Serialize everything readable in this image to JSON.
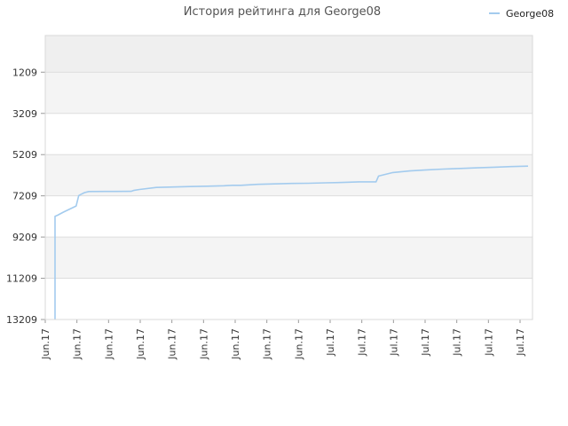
{
  "chart_data": {
    "type": "line",
    "title": "История рейтинга для George08",
    "xlabel": "",
    "ylabel": "",
    "y_inverted": true,
    "ylim": [
      13209,
      -570
    ],
    "yticks": [
      1209,
      3209,
      5209,
      7209,
      9209,
      11209,
      13209
    ],
    "xtick_labels": [
      "Jun.17",
      "Jun.17",
      "Jun.17",
      "Jun.17",
      "Jun.17",
      "Jun.17",
      "Jun.17",
      "Jun.17",
      "Jun.17",
      "Jul.17",
      "Jul.17",
      "Jul.17",
      "Jul.17",
      "Jul.17",
      "Jul.17",
      "Jul.17"
    ],
    "grid": true,
    "legend": "top-right",
    "series": [
      {
        "name": "George08",
        "color": "#a3cbee",
        "x": [
          0,
          0,
          0.3,
          1,
          2.5,
          2.8,
          3,
          3.5,
          4,
          6,
          7,
          9,
          9.3,
          10,
          12,
          14,
          16,
          18,
          20,
          21,
          22,
          24,
          26,
          28,
          30,
          32,
          34,
          36,
          38,
          38.3,
          40,
          42,
          44,
          46,
          48,
          50,
          52,
          54,
          56
        ],
        "values": [
          13209,
          8200,
          8150,
          8000,
          7700,
          7200,
          7150,
          7050,
          7000,
          6995,
          6995,
          6990,
          6950,
          6900,
          6800,
          6780,
          6760,
          6740,
          6720,
          6700,
          6700,
          6650,
          6630,
          6610,
          6600,
          6580,
          6560,
          6530,
          6530,
          6250,
          6080,
          6000,
          5950,
          5910,
          5880,
          5850,
          5820,
          5790,
          5770
        ]
      }
    ]
  }
}
